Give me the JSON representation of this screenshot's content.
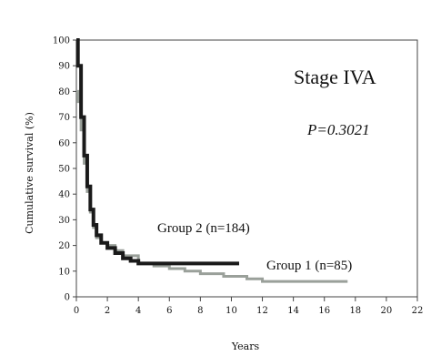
{
  "chart_data": {
    "type": "line",
    "xlabel": "Years",
    "ylabel": "Cumulative survival (%)",
    "xlim": [
      0,
      22
    ],
    "ylim": [
      0,
      100
    ],
    "xticks": [
      "0",
      "2",
      "4",
      "6",
      "8",
      "10",
      "12",
      "14",
      "16",
      "18",
      "20",
      "22"
    ],
    "yticks": [
      "0",
      "10",
      "20",
      "30",
      "40",
      "50",
      "60",
      "70",
      "80",
      "90",
      "100"
    ],
    "grid": false,
    "annotations": {
      "stage": "Stage IVA",
      "p_value": "P=0.3021"
    },
    "series": [
      {
        "name": "Group 2 (n=184)",
        "color": "#1a1a1a",
        "step": true,
        "x": [
          0,
          0.1,
          0.3,
          0.5,
          0.7,
          0.9,
          1.1,
          1.3,
          1.6,
          2.0,
          2.5,
          3.0,
          3.5,
          4.0,
          5.0,
          6.0,
          8.0,
          10.5
        ],
        "y": [
          100,
          90,
          70,
          55,
          43,
          34,
          28,
          24,
          21,
          19,
          17,
          15,
          14,
          13,
          13,
          13,
          13,
          13
        ]
      },
      {
        "name": "Group 1 (n=85)",
        "color": "#9aa09a",
        "step": true,
        "x": [
          0,
          0.1,
          0.3,
          0.5,
          0.7,
          0.9,
          1.1,
          1.3,
          1.6,
          2.0,
          2.5,
          3.0,
          4.0,
          5.0,
          6.0,
          7.0,
          8.0,
          9.5,
          11.0,
          12.0,
          17.5
        ],
        "y": [
          80,
          76,
          65,
          52,
          41,
          33,
          27,
          23,
          21,
          20,
          18,
          16,
          13,
          12,
          11,
          10,
          9,
          8,
          7,
          6,
          6
        ]
      }
    ]
  }
}
